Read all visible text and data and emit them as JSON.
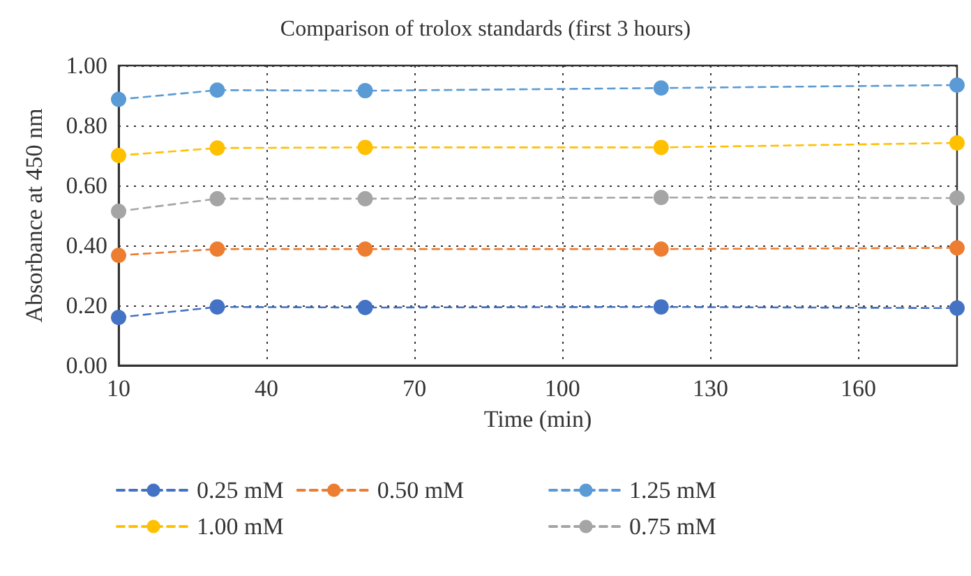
{
  "chart_data": {
    "type": "line",
    "title": "Comparison of trolox standards (first 3 hours)",
    "xlabel": "Time (min)",
    "ylabel": "Absorbance at 450 nm",
    "x": [
      10,
      30,
      60,
      120,
      180
    ],
    "series": [
      {
        "name": "0.25 mM",
        "color": "#4472c4",
        "values": [
          0.16,
          0.195,
          0.193,
          0.195,
          0.191
        ]
      },
      {
        "name": "1.25 mM",
        "color": "#5b9bd5",
        "values": [
          0.887,
          0.918,
          0.916,
          0.925,
          0.935
        ]
      },
      {
        "name": "1.00 mM",
        "color": "#ffc000",
        "values": [
          0.7,
          0.725,
          0.727,
          0.727,
          0.742
        ]
      },
      {
        "name": "0.75 mM",
        "color": "#a5a5a5",
        "values": [
          0.514,
          0.556,
          0.556,
          0.56,
          0.558
        ]
      },
      {
        "name": "0.50 mM",
        "color": "#ed7d31",
        "values": [
          0.367,
          0.388,
          0.388,
          0.388,
          0.392
        ]
      }
    ],
    "xlim": [
      10,
      180
    ],
    "xticks": [
      10,
      40,
      70,
      100,
      130,
      160
    ],
    "ylim": [
      0,
      1
    ],
    "yticks": [
      {
        "value": 0,
        "label": "0.00"
      },
      {
        "value": 0.2,
        "label": "0.20"
      },
      {
        "value": 0.4,
        "label": "0.40"
      },
      {
        "value": 0.6,
        "label": "0.60"
      },
      {
        "value": 0.8,
        "label": "0.80"
      },
      {
        "value": 1,
        "label": "1.00"
      }
    ],
    "grid": true,
    "legend": "bottom",
    "marker": "circle",
    "line_style": "dashed"
  }
}
